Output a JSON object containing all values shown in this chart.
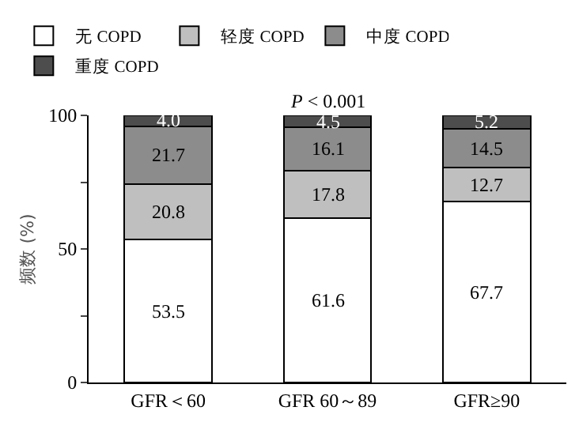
{
  "chart_data": {
    "type": "bar",
    "stacked": true,
    "legend": "top",
    "grid": false,
    "ylabel": "频数 (%)",
    "annotations": [
      "P < 0.001"
    ],
    "categories": [
      "GFR＜60",
      "GFR 60～89",
      "GFR≥90"
    ],
    "ylim": [
      0,
      100
    ],
    "yticks": [
      0,
      {
        "value": 25,
        "label": null
      },
      50,
      {
        "value": 75,
        "label": null
      },
      100
    ],
    "series": [
      {
        "name": "无 COPD",
        "color": "#ffffff",
        "values": [
          53.5,
          61.6,
          67.7
        ],
        "value_labels": [
          "53.5",
          "61.6",
          "67.7"
        ]
      },
      {
        "name": "轻度 COPD",
        "color": "#bfbfbf",
        "values": [
          20.8,
          17.8,
          12.7
        ],
        "value_labels": [
          "20.8",
          "17.8",
          "12.7"
        ]
      },
      {
        "name": "中度 COPD",
        "color": "#8c8c8c",
        "values": [
          21.7,
          16.1,
          14.5
        ],
        "value_labels": [
          "21.7",
          "16.1",
          "14.5"
        ]
      },
      {
        "name": "重度 COPD",
        "color": "#4d4d4d",
        "values": [
          4.0,
          4.5,
          5.2
        ],
        "value_labels": [
          "4.0",
          "4.5",
          "5.2"
        ]
      }
    ]
  }
}
